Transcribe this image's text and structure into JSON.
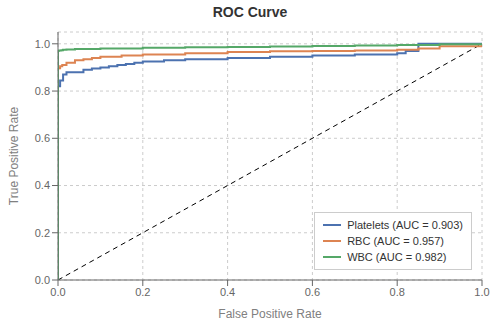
{
  "chart_data": {
    "type": "line",
    "title": "ROC Curve",
    "x_label": "False Positive Rate",
    "y_label": "True Positive Rate",
    "xlim": [
      0,
      1
    ],
    "ylim": [
      0,
      1.05
    ],
    "xticks": [
      {
        "value": 0,
        "label": "0.0"
      },
      0.2,
      0.4,
      0.6,
      0.8,
      {
        "value": 1,
        "label": "1.0"
      }
    ],
    "yticks": [
      {
        "value": 0,
        "label": "0.0"
      },
      0.2,
      0.4,
      0.6,
      0.8,
      {
        "value": 1,
        "label": "1.0"
      }
    ],
    "grid": true,
    "legend": "lower right",
    "series": [
      {
        "color": "black",
        "line_style": "dashed",
        "x": [
          0,
          1
        ],
        "values": [
          0,
          1
        ]
      },
      {
        "name": "Platelets (AUC = 0.903)",
        "color": "#4c72b0",
        "line_style": "step",
        "x": [
          0.0,
          0.0,
          0.001,
          0.005,
          0.008,
          0.012,
          0.015,
          0.02,
          0.04,
          0.06,
          0.08,
          0.1,
          0.12,
          0.14,
          0.16,
          0.18,
          0.2,
          0.25,
          0.3,
          0.4,
          0.5,
          0.6,
          0.7,
          0.8,
          0.82,
          0.85,
          0.9,
          1.0
        ],
        "values": [
          0.0,
          0.82,
          0.82,
          0.845,
          0.845,
          0.87,
          0.87,
          0.88,
          0.88,
          0.89,
          0.895,
          0.9,
          0.905,
          0.91,
          0.915,
          0.92,
          0.925,
          0.93,
          0.935,
          0.94,
          0.945,
          0.95,
          0.955,
          0.96,
          0.97,
          1.0,
          1.0,
          1.0
        ]
      },
      {
        "name": "RBC (AUC = 0.957)",
        "color": "#dd8452",
        "line_style": "step",
        "x": [
          0.0,
          0.0,
          0.001,
          0.005,
          0.01,
          0.02,
          0.04,
          0.06,
          0.08,
          0.1,
          0.15,
          0.2,
          0.3,
          0.4,
          0.5,
          0.6,
          0.7,
          0.8,
          0.85,
          0.9,
          1.0
        ],
        "values": [
          0.0,
          0.895,
          0.897,
          0.905,
          0.91,
          0.92,
          0.93,
          0.935,
          0.94,
          0.945,
          0.95,
          0.955,
          0.96,
          0.965,
          0.968,
          0.97,
          0.972,
          0.975,
          0.98,
          0.99,
          1.0
        ]
      },
      {
        "name": "WBC (AUC = 0.982)",
        "color": "#55a868",
        "line_style": "step",
        "x": [
          0.0,
          0.0,
          0.001,
          0.003,
          0.008,
          0.012,
          0.02,
          0.04,
          0.1,
          0.2,
          0.3,
          0.4,
          0.5,
          0.6,
          0.7,
          0.8,
          0.9,
          1.0
        ],
        "values": [
          0.0,
          0.97,
          0.971,
          0.972,
          0.973,
          0.975,
          0.976,
          0.978,
          0.98,
          0.983,
          0.985,
          0.987,
          0.989,
          0.991,
          0.993,
          0.995,
          0.998,
          1.0
        ]
      }
    ]
  }
}
